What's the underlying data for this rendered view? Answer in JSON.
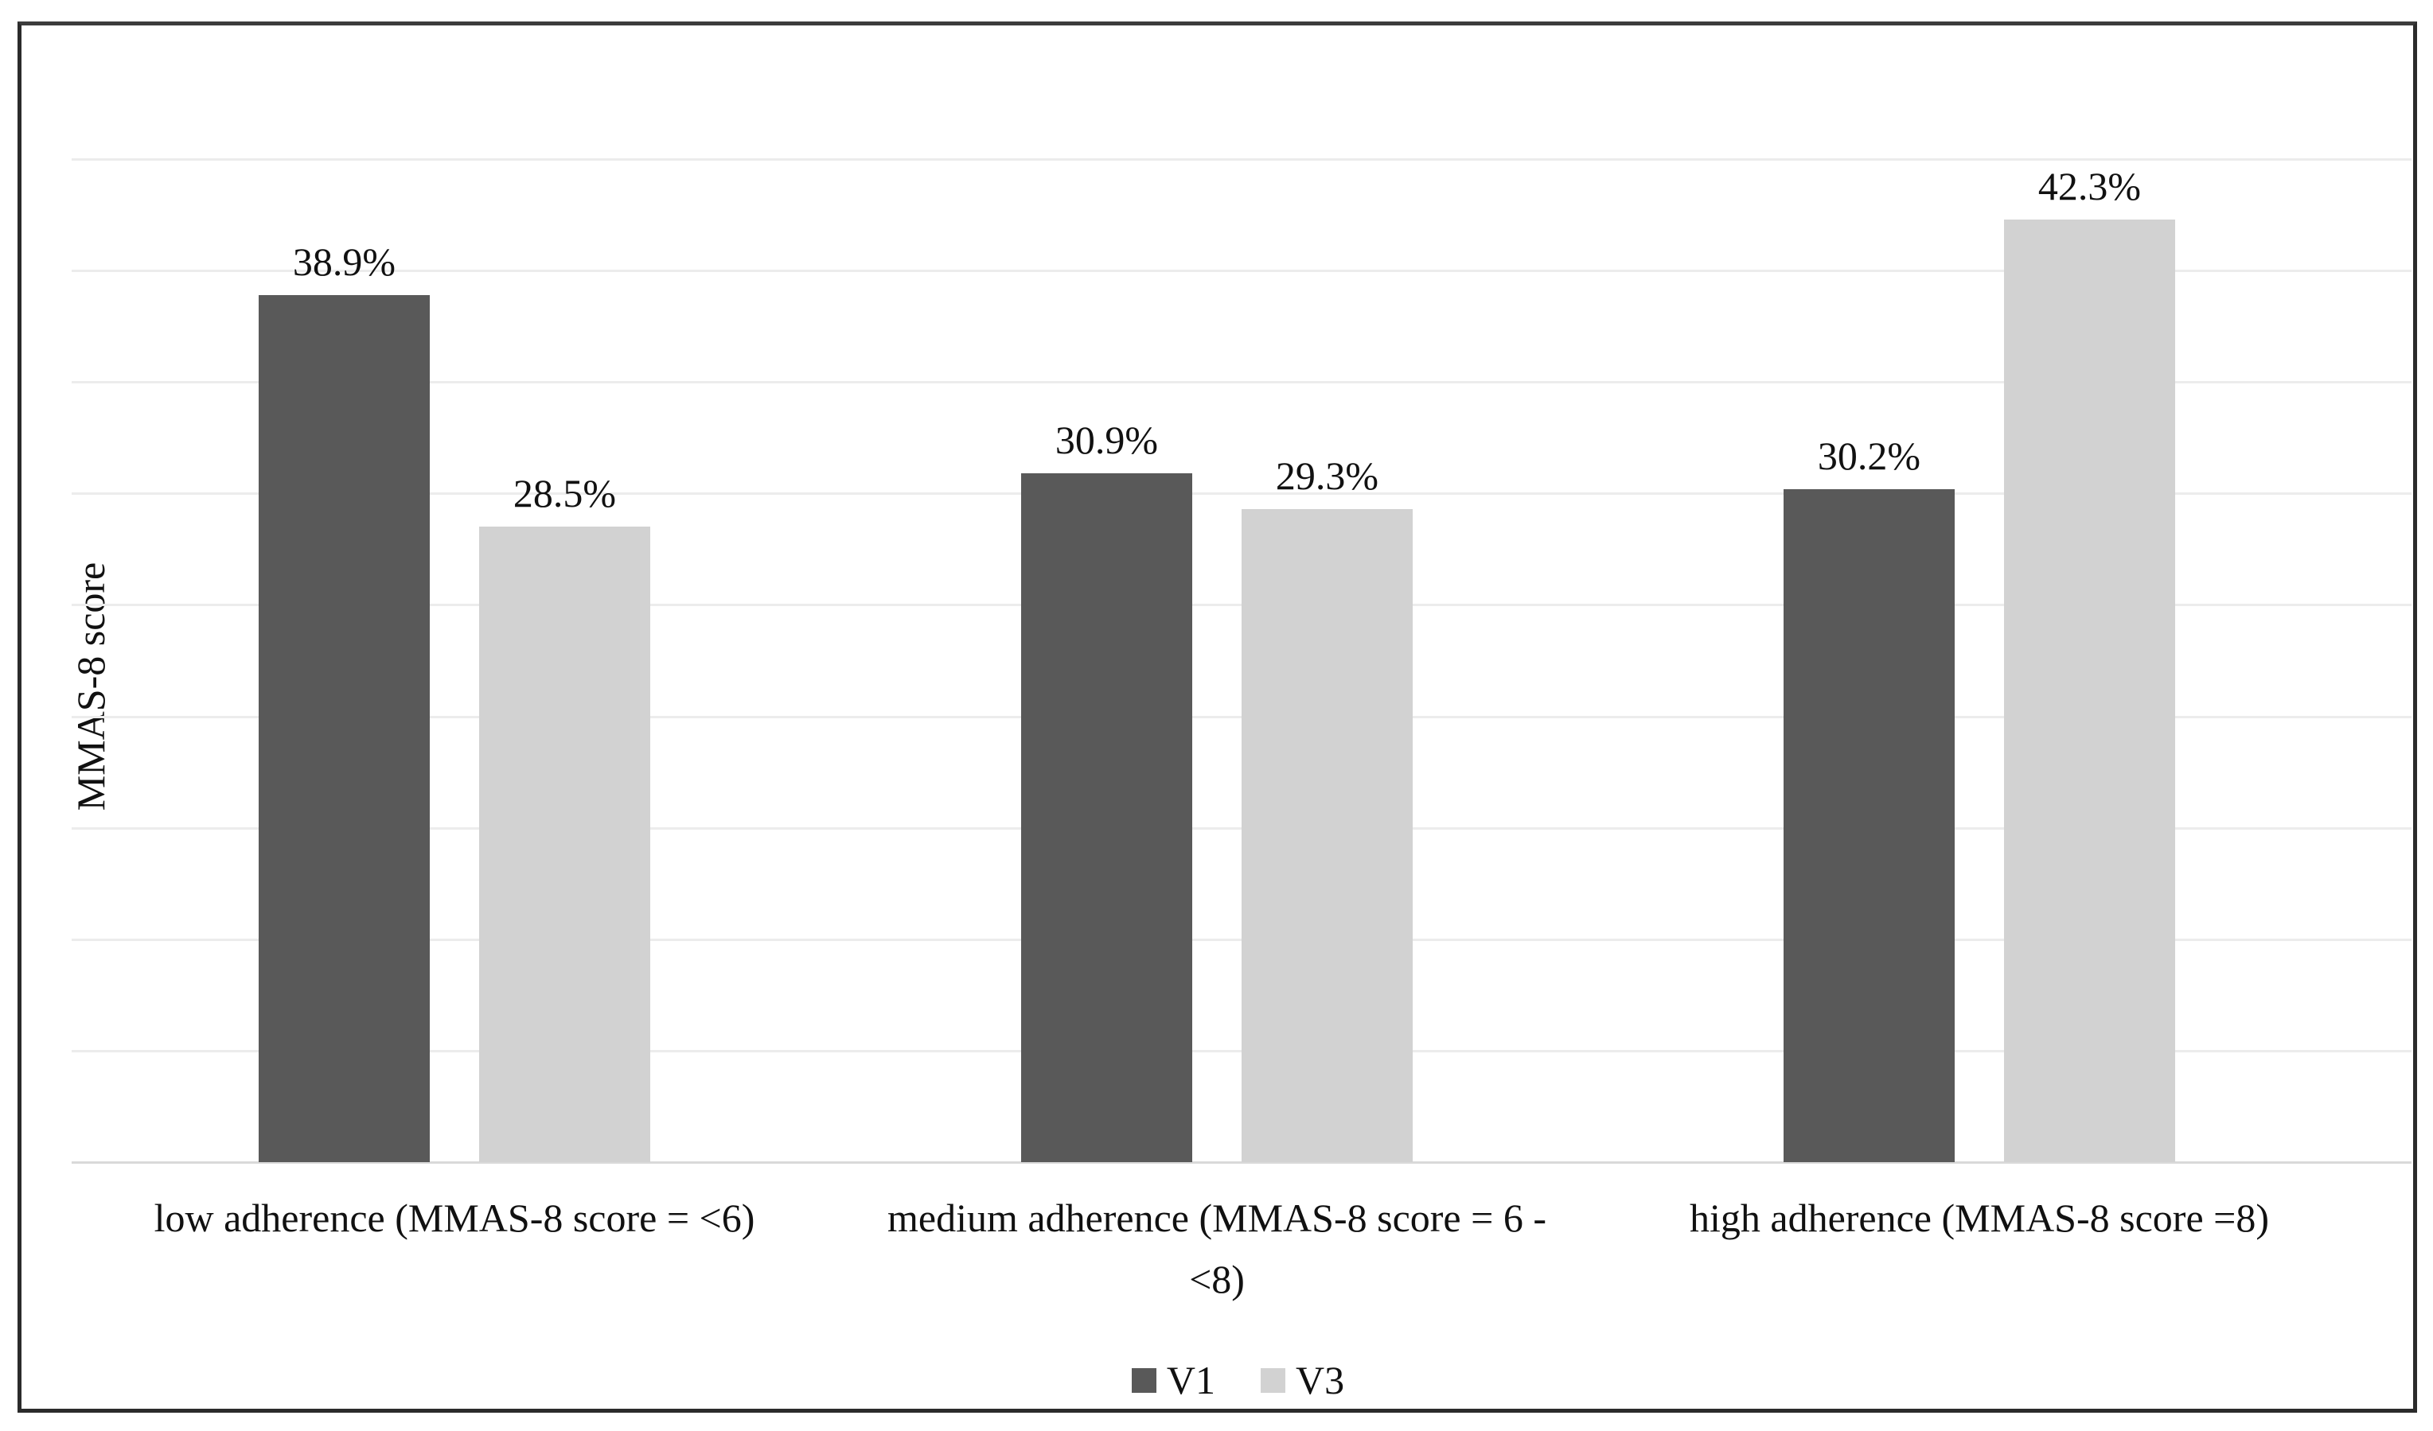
{
  "chart_data": {
    "type": "bar",
    "title": "",
    "categories": [
      "low adherence (MMAS-8 score = <6)",
      "medium adherence (MMAS-8 score = 6 - <8)",
      "high adherence (MMAS-8 score =8)"
    ],
    "series": [
      {
        "name": "V1",
        "color": "#595959",
        "values": [
          38.9,
          30.9,
          30.2
        ]
      },
      {
        "name": "V3",
        "color": "#d2d2d2",
        "values": [
          28.5,
          29.3,
          42.3
        ]
      }
    ],
    "value_suffix": "%",
    "xlabel": "",
    "ylabel": "MMAS-8 score",
    "ylim": [
      0,
      45
    ],
    "gridline_interval": 5,
    "grid": true,
    "y_tick_labels_shown": false,
    "legend_position": "bottom",
    "data_labels": [
      "38.9%",
      "28.5%",
      "30.9%",
      "29.3%",
      "30.2%",
      "42.3%"
    ]
  },
  "figure": {
    "background": "#ffffff",
    "frame_border_color": "#2b2b2b",
    "gridline_color": "#ececec",
    "axis_line_color": "#d9d9d9"
  }
}
